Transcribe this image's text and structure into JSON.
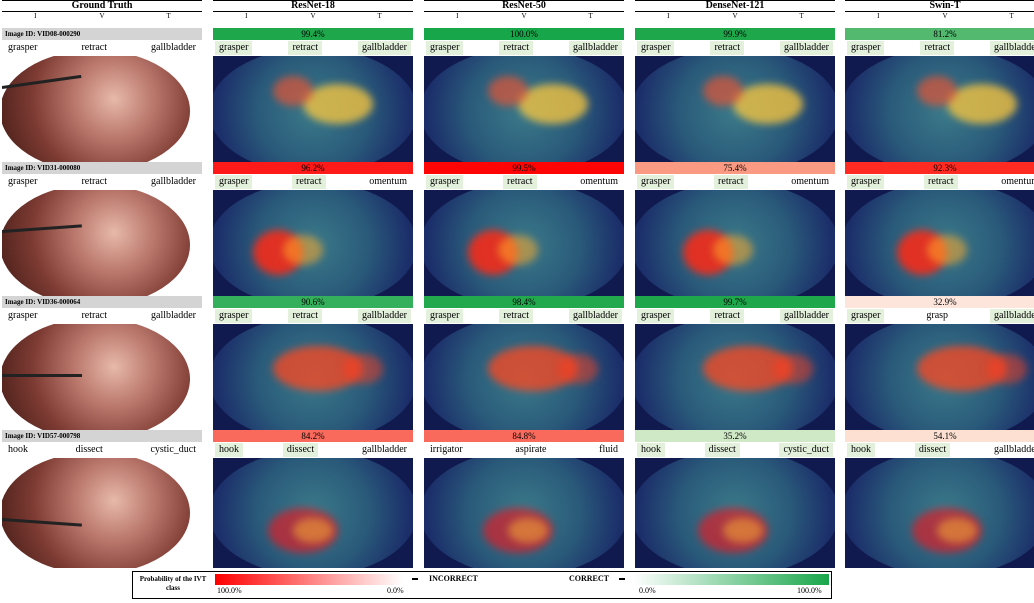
{
  "columns": [
    {
      "title": "Ground Truth",
      "ivt": [
        "I",
        "V",
        "T"
      ]
    },
    {
      "title": "ResNet-18",
      "ivt": [
        "I",
        "V",
        "T"
      ]
    },
    {
      "title": "ResNet-50",
      "ivt": [
        "I",
        "V",
        "T"
      ]
    },
    {
      "title": "DenseNet-121",
      "ivt": [
        "I",
        "V",
        "T"
      ]
    },
    {
      "title": "Swin-T",
      "ivt": [
        "I",
        "V",
        "T"
      ]
    }
  ],
  "rows": [
    {
      "image_id": "Image ID: VID08-000290",
      "gt": [
        "grasper",
        "retract",
        "gallbladder"
      ],
      "models": [
        {
          "conf": "99.4%",
          "color": "#1ea84b",
          "labels": [
            "grasper",
            "retract",
            "gallbladder"
          ]
        },
        {
          "conf": "100.0%",
          "color": "#18a64a",
          "labels": [
            "grasper",
            "retract",
            "gallbladder"
          ]
        },
        {
          "conf": "99.9%",
          "color": "#1ea84b",
          "labels": [
            "grasper",
            "retract",
            "gallbladder"
          ]
        },
        {
          "conf": "81.2%",
          "color": "#52b96f",
          "labels": [
            "grasper",
            "retract",
            "gallbladder"
          ]
        }
      ]
    },
    {
      "image_id": "Image ID: VID31-000080",
      "gt": [
        "grasper",
        "retract",
        "gallbladder"
      ],
      "models": [
        {
          "conf": "96.2%",
          "color": "#ff1a1a",
          "labels": [
            "grasper",
            "retract",
            "omentum"
          ]
        },
        {
          "conf": "99.5%",
          "color": "#ff0404",
          "labels": [
            "grasper",
            "retract",
            "omentum"
          ]
        },
        {
          "conf": "75.4%",
          "color": "#fb9a83",
          "labels": [
            "grasper",
            "retract",
            "omentum"
          ]
        },
        {
          "conf": "92.3%",
          "color": "#ff2b22",
          "labels": [
            "grasper",
            "retract",
            "omentum"
          ]
        }
      ]
    },
    {
      "image_id": "Image ID: VID36-000064",
      "gt": [
        "grasper",
        "retract",
        "gallbladder"
      ],
      "models": [
        {
          "conf": "90.6%",
          "color": "#34af5c",
          "labels": [
            "grasper",
            "retract",
            "gallbladder"
          ]
        },
        {
          "conf": "98.4%",
          "color": "#22a94e",
          "labels": [
            "grasper",
            "retract",
            "gallbladder"
          ]
        },
        {
          "conf": "99.7%",
          "color": "#1ea84b",
          "labels": [
            "grasper",
            "retract",
            "gallbladder"
          ]
        },
        {
          "conf": "32.9%",
          "color": "#fde5dc",
          "labels": [
            "grasper",
            "grasp",
            "gallbladder"
          ]
        }
      ]
    },
    {
      "image_id": "Image ID: VID57-000798",
      "gt": [
        "hook",
        "dissect",
        "cystic_duct"
      ],
      "models": [
        {
          "conf": "84.2%",
          "color": "#fa6a5c",
          "labels": [
            "hook",
            "dissect",
            "gallbladder"
          ]
        },
        {
          "conf": "84.8%",
          "color": "#fa6a5c",
          "labels": [
            "irrigator",
            "aspirate",
            "fluid"
          ]
        },
        {
          "conf": "35.2%",
          "color": "#cfe8c5",
          "labels": [
            "hook",
            "dissect",
            "cystic_duct"
          ]
        },
        {
          "conf": "54.1%",
          "color": "#fde0d2",
          "labels": [
            "hook",
            "dissect",
            "gallbladder"
          ]
        }
      ]
    }
  ],
  "legend": {
    "title": "Probability of the IVT class",
    "incorrect": "INCORRECT",
    "correct": "CORRECT",
    "red_left": "100.0%",
    "red_right": "0.0%",
    "green_left": "0.0%",
    "green_right": "100.0%",
    "incorrect_color": "#ff0000",
    "correct_color": "#18a64a"
  }
}
